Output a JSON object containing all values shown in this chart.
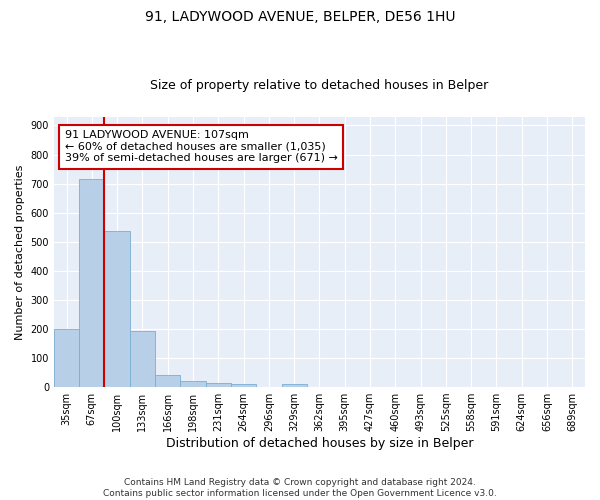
{
  "title": "91, LADYWOOD AVENUE, BELPER, DE56 1HU",
  "subtitle": "Size of property relative to detached houses in Belper",
  "xlabel": "Distribution of detached houses by size in Belper",
  "ylabel": "Number of detached properties",
  "categories": [
    "35sqm",
    "67sqm",
    "100sqm",
    "133sqm",
    "166sqm",
    "198sqm",
    "231sqm",
    "264sqm",
    "296sqm",
    "329sqm",
    "362sqm",
    "395sqm",
    "427sqm",
    "460sqm",
    "493sqm",
    "525sqm",
    "558sqm",
    "591sqm",
    "624sqm",
    "656sqm",
    "689sqm"
  ],
  "values": [
    200,
    715,
    537,
    193,
    42,
    20,
    14,
    12,
    0,
    10,
    0,
    0,
    0,
    0,
    0,
    0,
    0,
    0,
    0,
    0,
    0
  ],
  "bar_color": "#b8cfe8",
  "bar_edge_color": "#7aaed4",
  "vline_color": "#cc0000",
  "vline_x": 1.5,
  "annotation_text": "91 LADYWOOD AVENUE: 107sqm\n← 60% of detached houses are smaller (1,035)\n39% of semi-detached houses are larger (671) →",
  "annotation_box_facecolor": "#ffffff",
  "annotation_box_edgecolor": "#cc0000",
  "ylim": [
    0,
    930
  ],
  "yticks": [
    0,
    100,
    200,
    300,
    400,
    500,
    600,
    700,
    800,
    900
  ],
  "bg_color": "#ffffff",
  "plot_bg_color": "#e8eef8",
  "grid_color": "#ffffff",
  "title_fontsize": 10,
  "subtitle_fontsize": 9,
  "xlabel_fontsize": 9,
  "ylabel_fontsize": 8,
  "tick_fontsize": 7,
  "annot_fontsize": 8,
  "footer_fontsize": 6.5,
  "footer": "Contains HM Land Registry data © Crown copyright and database right 2024.\nContains public sector information licensed under the Open Government Licence v3.0."
}
